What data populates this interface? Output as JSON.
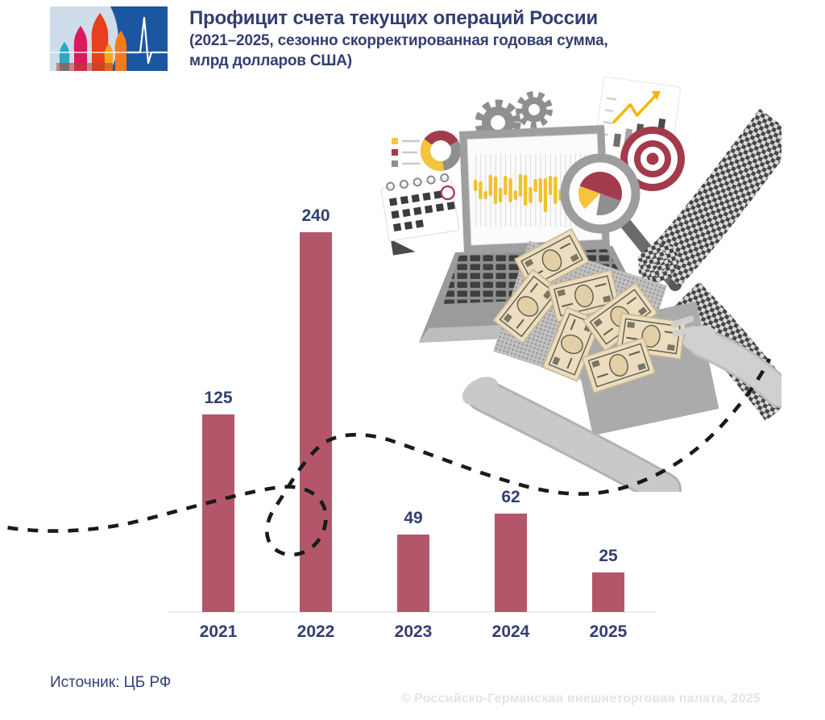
{
  "header": {
    "title": "Профицит счета текущих операций России",
    "subtitle_lines": [
      "(2021–2025, сезонно скорректированная годовая сумма,",
      "млрд долларов США)"
    ],
    "logo_icon": "russian-german-chamber-logo"
  },
  "chart_data": {
    "type": "bar",
    "title": "Профицит счета текущих операций России",
    "subtitle": "(2021–2025, сезонно скорректированная годовая сумма, млрд долларов США)",
    "categories": [
      "2021",
      "2022",
      "2023",
      "2024",
      "2025"
    ],
    "values": [
      125,
      240,
      49,
      62,
      25
    ],
    "data_labels": [
      125,
      240,
      49,
      62,
      25
    ],
    "xlabel": "",
    "ylabel": "млрд долларов США",
    "ylim": [
      0,
      240
    ],
    "grid": false,
    "legend_position": "none",
    "bar_color": "#b45669",
    "label_color": "#333e72"
  },
  "footer": {
    "source": "Источник: ЦБ РФ",
    "copyright": "© Российско-Германская внешнеторговая палата, 2025"
  },
  "colors": {
    "navy_text": "#333e72",
    "bar_red": "#b45669",
    "axis_gray": "#ebebef",
    "accent_red": "#a23b4b",
    "accent_yellow": "#f5c33c",
    "dashed_line_black": "#1a1a1a",
    "logo_blue": "#1b56a0",
    "logo_bg": "#cfdce9",
    "copyright_gray": "#e4e4e4"
  },
  "illustration": {
    "icons": [
      "laptop-icon",
      "gears-icon",
      "donut-chart-icon",
      "chart-legend-icon",
      "calendar-icon",
      "growth-chart-card-icon",
      "target-icon",
      "magnifier-pie-icon",
      "checkered-arm-icon",
      "money-bills-icon",
      "hands-icon",
      "dashed-trend-line"
    ]
  }
}
